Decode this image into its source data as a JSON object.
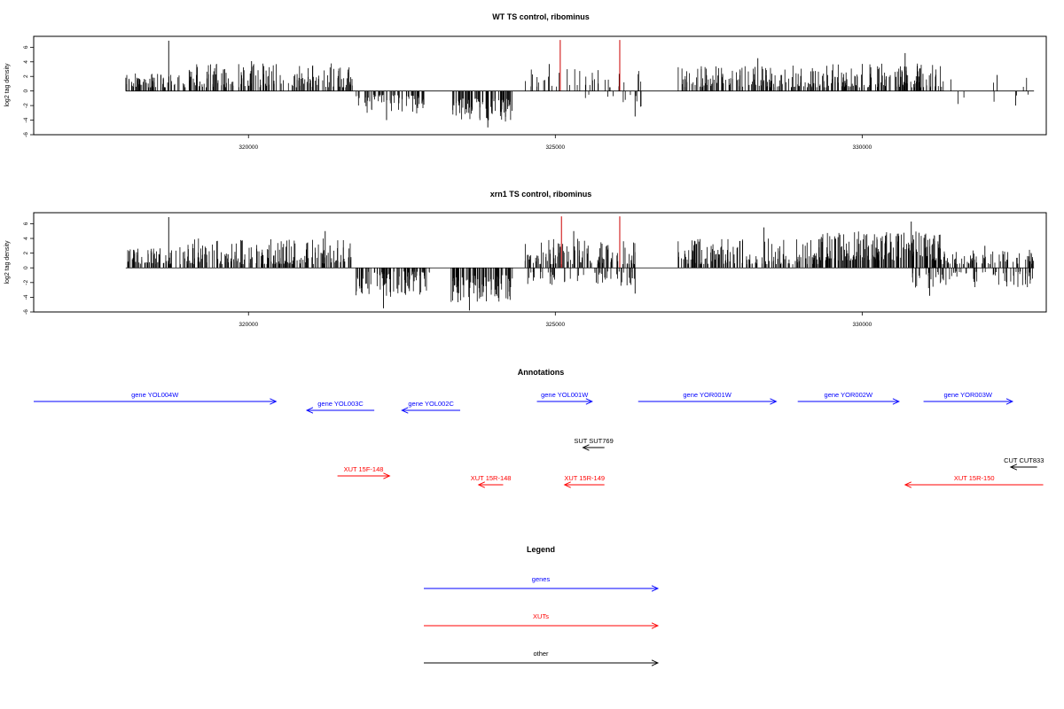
{
  "chart_data": [
    {
      "type": "bar",
      "title": "WT TS control, ribominus",
      "xlabel": "",
      "ylabel": "log2 tag density",
      "xlim": [
        316500,
        333000
      ],
      "ylim": [
        -6,
        7.5
      ],
      "x_ticks": [
        320000,
        325000,
        330000
      ],
      "y_ticks": [
        6,
        4,
        2,
        0,
        -2,
        -4,
        -6
      ],
      "baseline": [
        318000,
        332800
      ],
      "highlighted_bars": [
        {
          "x": 325080,
          "y": 7.0
        },
        {
          "x": 326050,
          "y": 7.0
        }
      ],
      "density_profile": [
        {
          "start": 318000,
          "end": 319000,
          "sign": 1,
          "min": 0.5,
          "max": 2.5,
          "peak_x": 318700,
          "peak_y": 6.9,
          "density": 1.0
        },
        {
          "start": 319000,
          "end": 321700,
          "sign": 1,
          "min": 0.5,
          "max": 3.8,
          "peak_x": 320050,
          "peak_y": 4.1,
          "density": 0.9
        },
        {
          "start": 321750,
          "end": 322900,
          "sign": -1,
          "min": 0.5,
          "max": 3.2,
          "peak_x": 322250,
          "peak_y": -4.0,
          "density": 0.85
        },
        {
          "start": 323300,
          "end": 324300,
          "sign": -1,
          "min": 1.0,
          "max": 4.2,
          "peak_x": 323900,
          "peak_y": -5.0,
          "density": 1.2
        },
        {
          "start": 324500,
          "end": 326400,
          "sign": 1,
          "min": 0.5,
          "max": 3.0,
          "peak_x": 324900,
          "peak_y": 3.7,
          "density": 0.3
        },
        {
          "start": 325300,
          "end": 326400,
          "sign": -1,
          "min": 0.5,
          "max": 2.5,
          "peak_x": 326300,
          "peak_y": -3.5,
          "density": 0.15
        },
        {
          "start": 327000,
          "end": 329300,
          "sign": 1,
          "min": 0.5,
          "max": 3.5,
          "peak_x": 328300,
          "peak_y": 4.5,
          "density": 0.9
        },
        {
          "start": 329300,
          "end": 331300,
          "sign": 1,
          "min": 0.5,
          "max": 3.8,
          "peak_x": 330700,
          "peak_y": 5.2,
          "density": 1.0
        },
        {
          "start": 331300,
          "end": 332800,
          "sign": 1,
          "min": 0.5,
          "max": 2.0,
          "peak_x": 332200,
          "peak_y": 2.2,
          "density": 0.05
        },
        {
          "start": 331300,
          "end": 332800,
          "sign": -1,
          "min": 0.5,
          "max": 1.8,
          "peak_x": 332500,
          "peak_y": -2.0,
          "density": 0.05
        }
      ]
    },
    {
      "type": "bar",
      "title": "xrn1 TS control, ribominus",
      "xlabel": "",
      "ylabel": "log2 tag density",
      "xlim": [
        316500,
        333000
      ],
      "ylim": [
        -6,
        7.5
      ],
      "x_ticks": [
        320000,
        325000,
        330000
      ],
      "y_ticks": [
        6,
        4,
        2,
        0,
        -2,
        -4,
        -6
      ],
      "baseline": [
        318000,
        332800
      ],
      "highlighted_bars": [
        {
          "x": 325100,
          "y": 7.0
        },
        {
          "x": 326050,
          "y": 7.0
        }
      ],
      "density_profile": [
        {
          "start": 318000,
          "end": 319000,
          "sign": 1,
          "min": 0.5,
          "max": 2.8,
          "peak_x": 318700,
          "peak_y": 6.9,
          "density": 1.0
        },
        {
          "start": 319000,
          "end": 321700,
          "sign": 1,
          "min": 0.5,
          "max": 4.0,
          "peak_x": 321250,
          "peak_y": 5.0,
          "density": 1.0
        },
        {
          "start": 321750,
          "end": 322950,
          "sign": -1,
          "min": 0.5,
          "max": 4.0,
          "peak_x": 322200,
          "peak_y": -5.5,
          "density": 1.1
        },
        {
          "start": 323300,
          "end": 324300,
          "sign": -1,
          "min": 1.0,
          "max": 4.8,
          "peak_x": 323600,
          "peak_y": -5.8,
          "density": 1.3
        },
        {
          "start": 324500,
          "end": 326300,
          "sign": 1,
          "min": 0.5,
          "max": 4.0,
          "peak_x": 325300,
          "peak_y": 5.0,
          "density": 0.9
        },
        {
          "start": 324500,
          "end": 326400,
          "sign": -1,
          "min": 0.5,
          "max": 2.5,
          "peak_x": 326300,
          "peak_y": -3.5,
          "density": 0.4
        },
        {
          "start": 327000,
          "end": 329300,
          "sign": 1,
          "min": 0.5,
          "max": 4.0,
          "peak_x": 328400,
          "peak_y": 5.5,
          "density": 1.0
        },
        {
          "start": 329300,
          "end": 331300,
          "sign": 1,
          "min": 1.0,
          "max": 5.0,
          "peak_x": 330800,
          "peak_y": 6.3,
          "density": 1.5
        },
        {
          "start": 330800,
          "end": 332800,
          "sign": -1,
          "min": 0.5,
          "max": 2.8,
          "peak_x": 331100,
          "peak_y": -3.8,
          "density": 0.5
        },
        {
          "start": 331300,
          "end": 332800,
          "sign": 1,
          "min": 0.5,
          "max": 2.5,
          "peak_x": 332000,
          "peak_y": 3.0,
          "density": 0.7
        }
      ]
    }
  ],
  "annotations": {
    "title": "Annotations",
    "xlim": [
      316500,
      333000
    ],
    "features": [
      {
        "label": "gene YOL004W",
        "class": "gene",
        "start": 316500,
        "end": 320450,
        "strand": "+",
        "row": 0
      },
      {
        "label": "gene YOL003C",
        "class": "gene",
        "start": 320950,
        "end": 322050,
        "strand": "-",
        "row": 1
      },
      {
        "label": "gene YOL002C",
        "class": "gene",
        "start": 322500,
        "end": 323450,
        "strand": "-",
        "row": 1
      },
      {
        "label": "gene YOL001W",
        "class": "gene",
        "start": 324700,
        "end": 325600,
        "strand": "+",
        "row": 0
      },
      {
        "label": "gene YOR001W",
        "class": "gene",
        "start": 326350,
        "end": 328600,
        "strand": "+",
        "row": 0
      },
      {
        "label": "gene YOR002W",
        "class": "gene",
        "start": 328950,
        "end": 330600,
        "strand": "+",
        "row": 0
      },
      {
        "label": "gene YOR003W",
        "class": "gene",
        "start": 331000,
        "end": 332450,
        "strand": "+",
        "row": 0
      },
      {
        "label": "SUT SUT769",
        "class": "other",
        "start": 325450,
        "end": 325800,
        "strand": "-",
        "row": 2
      },
      {
        "label": "CUT CUT833",
        "class": "other",
        "start": 332420,
        "end": 332850,
        "strand": "-",
        "row": 3
      },
      {
        "label": "XUT 15F-148",
        "class": "XUT",
        "start": 321450,
        "end": 322300,
        "strand": "+",
        "row": 4
      },
      {
        "label": "XUT 15R-148",
        "class": "XUT",
        "start": 323750,
        "end": 324150,
        "strand": "-",
        "row": 5
      },
      {
        "label": "XUT 15R-149",
        "class": "XUT",
        "start": 325150,
        "end": 325800,
        "strand": "-",
        "row": 5
      },
      {
        "label": "XUT 15R-150",
        "class": "XUT",
        "start": 330700,
        "end": 332950,
        "strand": "-",
        "row": 5
      }
    ]
  },
  "legend": {
    "title": "Legend",
    "entries": [
      {
        "label": "genes",
        "class": "gene"
      },
      {
        "label": "XUTs",
        "class": "XUT"
      },
      {
        "label": "other",
        "class": "other"
      }
    ]
  },
  "colors": {
    "gene": "#0000ff",
    "XUT": "#ff0000",
    "other": "#000000",
    "bar": "#000000",
    "highlight": "#cc0000"
  }
}
